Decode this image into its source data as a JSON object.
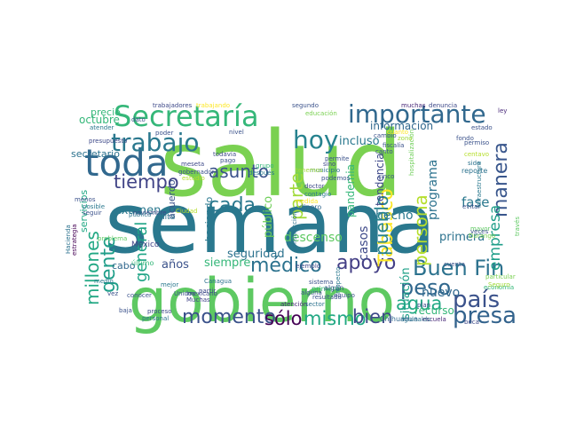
{
  "word_cloud": {
    "words": [
      {
        "text": "salud",
        "color": "#7ad151"
      },
      {
        "text": "semana",
        "color": "#2a788e"
      },
      {
        "text": "gobierno",
        "color": "#5ec962"
      },
      {
        "text": "toda",
        "color": "#31688e"
      },
      {
        "text": "Secretaría",
        "color": "#35b779"
      },
      {
        "text": "importante",
        "color": "#31688e"
      },
      {
        "text": "trabajo",
        "color": "#2a788e"
      },
      {
        "text": "hoy",
        "color": "#26828e"
      },
      {
        "text": "tiempo",
        "color": "#414487"
      },
      {
        "text": "millones",
        "color": "#22a884"
      },
      {
        "text": "gente",
        "color": "#1f9e89"
      },
      {
        "text": "momento",
        "color": "#3b528b"
      },
      {
        "text": "mismo",
        "color": "#22a884"
      },
      {
        "text": "bien",
        "color": "#3e4989"
      },
      {
        "text": "presa",
        "color": "#33638d"
      },
      {
        "text": "país",
        "color": "#3b528b"
      },
      {
        "text": "agua",
        "color": "#22a884"
      },
      {
        "text": "peso",
        "color": "#31688e"
      },
      {
        "text": "Buen Fin",
        "color": "#2c728e"
      },
      {
        "text": "apoyo",
        "color": "#433e85"
      },
      {
        "text": "médico",
        "color": "#2c728e"
      },
      {
        "text": "sólo",
        "color": "#440154"
      },
      {
        "text": "Tabasco",
        "color": "#fde725"
      },
      {
        "text": "pueblo",
        "color": "#26828e"
      },
      {
        "text": "persona",
        "color": "#b5de2b"
      },
      {
        "text": "manera",
        "color": "#39568c"
      },
      {
        "text": "empresa",
        "color": "#1f9e89"
      },
      {
        "text": "asunto",
        "color": "#3b528b"
      },
      {
        "text": "cada",
        "color": "#2a788e"
      },
      {
        "text": "parte",
        "color": "#a0da39"
      },
      {
        "text": "general",
        "color": "#20a486"
      },
      {
        "text": "programa",
        "color": "#2c728e"
      },
      {
        "text": "tendencia",
        "color": "#3e4989"
      },
      {
        "text": "casos",
        "color": "#3e4989"
      },
      {
        "text": "hecho",
        "color": "#2a788e"
      },
      {
        "text": "situación",
        "color": "#1fa188"
      },
      {
        "text": "primera",
        "color": "#2c728e"
      },
      {
        "text": "fase",
        "color": "#2a788e"
      },
      {
        "text": "nuevo",
        "color": "#31688e"
      },
      {
        "text": "recurso",
        "color": "#35b779"
      },
      {
        "text": "seguridad",
        "color": "#2c728e"
      },
      {
        "text": "siempre",
        "color": "#35b779"
      },
      {
        "text": "examen",
        "color": "#2a788e"
      },
      {
        "text": "años",
        "color": "#3b528b"
      },
      {
        "text": "descenso",
        "color": "#5ec962"
      },
      {
        "text": "público",
        "color": "#6ece58"
      },
      {
        "text": "octubre",
        "color": "#35b779"
      },
      {
        "text": "precio",
        "color": "#35b779"
      },
      {
        "text": "secretario",
        "color": "#2c728e"
      },
      {
        "text": "servicios",
        "color": "#22a884"
      },
      {
        "text": "haciendo",
        "color": "#2a788e"
      },
      {
        "text": "acuerdo",
        "color": "#3b528b"
      },
      {
        "text": "información",
        "color": "#31688e"
      },
      {
        "text": "incluso",
        "color": "#2a788e"
      },
      {
        "text": "pandemia",
        "color": "#35b779"
      },
      {
        "text": "estrategia",
        "color": "#440154"
      },
      {
        "text": "México",
        "color": "#414487"
      },
      {
        "text": "noviembre",
        "color": "#3e4989"
      },
      {
        "text": "cabo",
        "color": "#31688e"
      },
      {
        "text": "último",
        "color": "#35b779"
      },
      {
        "text": "falta",
        "color": "#2c728e"
      },
      {
        "text": "dinero",
        "color": "#31688e"
      },
      {
        "text": "trabajadores",
        "color": "#3e4989"
      },
      {
        "text": "presupuesto",
        "color": "#3e4989"
      },
      {
        "text": "hospitalización",
        "color": "#6ece58"
      },
      {
        "text": "educación",
        "color": "#7ad151"
      },
      {
        "text": "segundo",
        "color": "#3b528b"
      },
      {
        "text": "muchas",
        "color": "#482878"
      },
      {
        "text": "denuncia",
        "color": "#3e4989"
      },
      {
        "text": "ley",
        "color": "#482878"
      },
      {
        "text": "infraestructura",
        "color": "#2a788e"
      },
      {
        "text": "través",
        "color": "#5ec962"
      },
      {
        "text": "Chihuahua",
        "color": "#31688e"
      },
      {
        "text": "Canagua",
        "color": "#2c728e"
      },
      {
        "text": "Ciudad",
        "color": "#b5de2b"
      },
      {
        "text": "Hacienda",
        "color": "#2c728e"
      },
      {
        "text": "gobernador",
        "color": "#3b528b"
      },
      {
        "text": "meseta",
        "color": "#3e4989"
      },
      {
        "text": "estudio",
        "color": "#b5de2b"
      },
      {
        "text": "grupo",
        "color": "#35b779"
      },
      {
        "text": "después",
        "color": "#2a788e"
      },
      {
        "text": "municipio",
        "color": "#2c728e"
      },
      {
        "text": "podemos",
        "color": "#3b528b"
      },
      {
        "text": "doctor",
        "color": "#3e4989"
      },
      {
        "text": "sistema",
        "color": "#3b528b"
      },
      {
        "text": "primero",
        "color": "#35b779"
      },
      {
        "text": "cinco",
        "color": "#3b528b"
      },
      {
        "text": "reporte",
        "color": "#2c728e"
      },
      {
        "text": "Durango",
        "color": "#7ad151"
      },
      {
        "text": "mayor",
        "color": "#5ec962"
      },
      {
        "text": "evitar",
        "color": "#3b528b"
      },
      {
        "text": "plan",
        "color": "#3e4989"
      },
      {
        "text": "cuenta",
        "color": "#3b528b"
      },
      {
        "text": "economía",
        "color": "#35b779"
      },
      {
        "text": "beca",
        "color": "#3e4989"
      },
      {
        "text": "escuela",
        "color": "#482878"
      },
      {
        "text": "aguinaldo",
        "color": "#2c728e"
      },
      {
        "text": "resultado",
        "color": "#3b528b"
      },
      {
        "text": "algún",
        "color": "#3b528b"
      },
      {
        "text": "respecto",
        "color": "#2a788e"
      },
      {
        "text": "atención",
        "color": "#482878"
      },
      {
        "text": "Unidos",
        "color": "#3b528b"
      },
      {
        "text": "mexicano",
        "color": "#3e4989"
      },
      {
        "text": "proceso",
        "color": "#3e4989"
      },
      {
        "text": "baja",
        "color": "#3b528b"
      },
      {
        "text": "conocer",
        "color": "#3b528b"
      },
      {
        "text": "personal",
        "color": "#2c728e"
      },
      {
        "text": "Muchas",
        "color": "#414487"
      },
      {
        "text": "partir",
        "color": "#3e4989"
      },
      {
        "text": "mejor",
        "color": "#2a788e"
      },
      {
        "text": "pública",
        "color": "#2c728e"
      },
      {
        "text": "problema",
        "color": "#5ec962"
      },
      {
        "text": "seguir",
        "color": "#3b528b"
      },
      {
        "text": "menos",
        "color": "#3b528b"
      },
      {
        "text": "posible",
        "color": "#2a788e"
      },
      {
        "text": "ejemplo",
        "color": "#3e4989"
      },
      {
        "text": "construcción",
        "color": "#2c728e"
      },
      {
        "text": "sector",
        "color": "#2c728e"
      },
      {
        "text": "poder",
        "color": "#3b528b"
      },
      {
        "text": "dato",
        "color": "#3b528b"
      },
      {
        "text": "atender",
        "color": "#2a788e"
      },
      {
        "text": "nivel",
        "color": "#3b528b"
      },
      {
        "text": "todavía",
        "color": "#3e4989"
      },
      {
        "text": "pago",
        "color": "#3b528b"
      },
      {
        "text": "sino",
        "color": "#3e4989"
      },
      {
        "text": "permite",
        "color": "#3b528b"
      },
      {
        "text": "permiso",
        "color": "#3b528b"
      },
      {
        "text": "fondo",
        "color": "#3b528b"
      },
      {
        "text": "centavo",
        "color": "#b5de2b"
      },
      {
        "text": "zona",
        "color": "#a0da39"
      },
      {
        "text": "fiscalía",
        "color": "#3b528b"
      },
      {
        "text": "cambio",
        "color": "#3b528b"
      },
      {
        "text": "cuanto",
        "color": "#fde725"
      },
      {
        "text": "canto",
        "color": "#3b528b"
      },
      {
        "text": "sido",
        "color": "#2c728e"
      },
      {
        "text": "vez",
        "color": "#3b528b"
      },
      {
        "text": "medio",
        "color": "#2a788e"
      },
      {
        "text": "tenemos",
        "color": "#a0da39"
      },
      {
        "text": "particular",
        "color": "#7ad151"
      },
      {
        "text": "equipo",
        "color": "#3b528b"
      },
      {
        "text": "trabajando",
        "color": "#fde725"
      },
      {
        "text": "contagio",
        "color": "#2a788e"
      },
      {
        "text": "Seguro",
        "color": "#a0da39"
      },
      {
        "text": "alguna",
        "color": "#3b528b"
      },
      {
        "text": "veces",
        "color": "#3b528b"
      },
      {
        "text": "medida",
        "color": "#fde725"
      },
      {
        "text": "estado",
        "color": "#3b528b"
      }
    ]
  }
}
